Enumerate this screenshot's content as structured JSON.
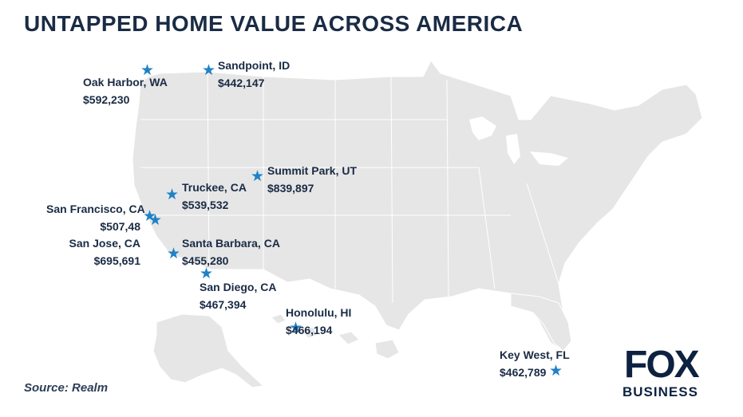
{
  "title": "UNTAPPED HOME VALUE ACROSS AMERICA",
  "source": "Source: Realm",
  "logo": {
    "top": "FOX",
    "bottom": "BUSINESS"
  },
  "colors": {
    "land": "#e6e6e6",
    "border": "#ffffff",
    "marker": "#1f82c6",
    "text": "#1a2b45",
    "logo": "#0d2240"
  },
  "marker_icon": "star-icon",
  "locations": [
    {
      "city": "Sandpoint, ID",
      "value": "$442,147"
    },
    {
      "city": "Oak Harbor, WA",
      "value": "$592,230"
    },
    {
      "city": "Summit Park, UT",
      "value": "$839,897"
    },
    {
      "city": "Truckee, CA",
      "value": "$539,532"
    },
    {
      "city": "San Francisco, CA",
      "value": "$507,48"
    },
    {
      "city": "San Jose, CA",
      "value": "$695,691"
    },
    {
      "city": "Santa Barbara, CA",
      "value": "$455,280"
    },
    {
      "city": "San Diego, CA",
      "value": "$467,394"
    },
    {
      "city": "Honolulu, HI",
      "value": "$466,194"
    },
    {
      "city": "Key West, FL",
      "value": "$462,789"
    }
  ]
}
